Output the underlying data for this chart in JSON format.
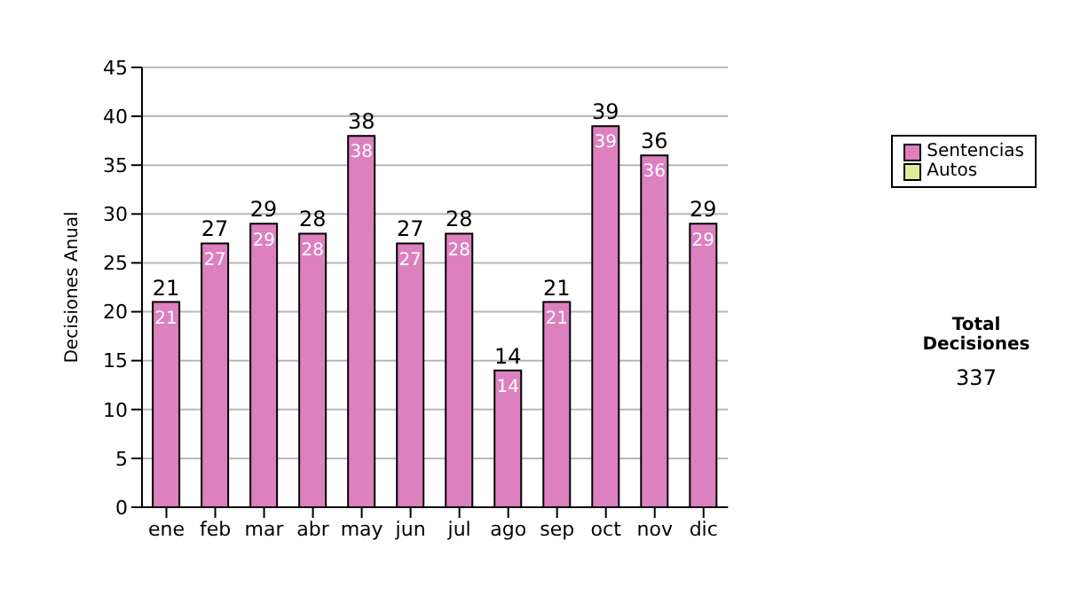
{
  "chart_data": {
    "type": "bar",
    "ylabel": "Decisiones Anual",
    "categories": [
      "ene",
      "feb",
      "mar",
      "abr",
      "may",
      "jun",
      "jul",
      "ago",
      "sep",
      "oct",
      "nov",
      "dic"
    ],
    "series": [
      {
        "name": "Sentencias",
        "color": "#dd80c0",
        "values": [
          21,
          27,
          29,
          28,
          38,
          27,
          28,
          14,
          21,
          39,
          36,
          29
        ]
      },
      {
        "name": "Autos",
        "color": "#ddee99",
        "values": [
          null,
          null,
          null,
          null,
          null,
          null,
          null,
          null,
          null,
          null,
          null,
          null
        ]
      }
    ],
    "stacked": true,
    "data_labels": true,
    "totals": [
      "21",
      "27",
      "29",
      "28",
      "38",
      "27",
      "28",
      "14",
      "21",
      "39",
      "36",
      "29"
    ],
    "ylim": [
      0,
      45
    ],
    "yticks": [
      0,
      5,
      10,
      15,
      20,
      25,
      30,
      35,
      40,
      45
    ],
    "grid": "y",
    "legend": "right",
    "annotations": [
      "Total Decisiones",
      "337"
    ]
  }
}
